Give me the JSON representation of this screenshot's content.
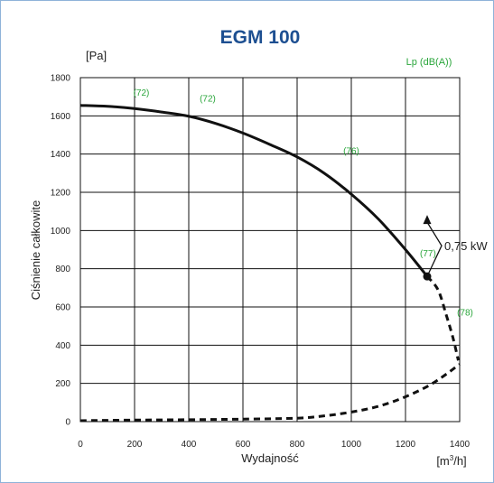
{
  "colors": {
    "title": "#1d4f91",
    "annotation": "#2aa63b",
    "curve": "#111111",
    "grid": "#111111",
    "border": "#8fb3d9"
  },
  "chart_data": {
    "type": "line",
    "title": "EGM 100",
    "xlabel": "Wydajność",
    "ylabel": "Ciśnienie całkowite",
    "x_unit": "[m³/h]",
    "y_unit": "[Pa]",
    "noise_label": "Lp (dB(A))",
    "xlim": [
      0,
      1400
    ],
    "ylim": [
      0,
      1800
    ],
    "x_ticks": [
      0,
      200,
      400,
      600,
      800,
      1000,
      1200,
      1400
    ],
    "y_ticks": [
      0,
      200,
      400,
      600,
      800,
      1000,
      1200,
      1400,
      1600,
      1800
    ],
    "grid": true,
    "series": [
      {
        "style": "solid",
        "x": [
          0,
          100,
          200,
          300,
          400,
          500,
          600,
          700,
          800,
          900,
          1000,
          1100,
          1200,
          1280
        ],
        "y": [
          1655,
          1650,
          1638,
          1620,
          1598,
          1560,
          1510,
          1450,
          1385,
          1300,
          1190,
          1060,
          900,
          760
        ]
      },
      {
        "style": "dashed",
        "x": [
          1280,
          1320,
          1350,
          1375,
          1395
        ],
        "y": [
          760,
          690,
          560,
          440,
          320
        ]
      },
      {
        "style": "dashed",
        "x": [
          0,
          200,
          400,
          600,
          800,
          900,
          1000,
          1100,
          1200,
          1300,
          1400
        ],
        "y": [
          5,
          8,
          10,
          13,
          18,
          30,
          50,
          80,
          130,
          200,
          300
        ]
      }
    ],
    "annotations": [
      {
        "text": "(72)",
        "x": 225,
        "y": 1705
      },
      {
        "text": "(72)",
        "x": 470,
        "y": 1675
      },
      {
        "text": "(76)",
        "x": 1000,
        "y": 1400
      },
      {
        "text": "(77)",
        "x": 1283,
        "y": 865
      },
      {
        "text": "(78)",
        "x": 1420,
        "y": 555
      }
    ],
    "operating_point": {
      "x": 1280,
      "y": 760
    },
    "power_label": "0,75 kW"
  }
}
